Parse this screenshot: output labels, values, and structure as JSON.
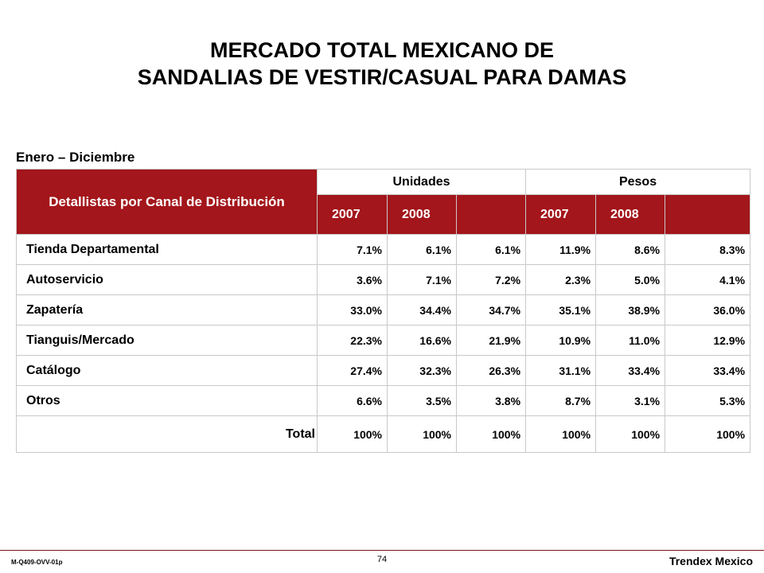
{
  "title": {
    "line1": "MERCADO TOTAL MEXICANO DE",
    "line2": "SANDALIAS DE VESTIR/CASUAL PARA DAMAS"
  },
  "period": "Enero – Diciembre",
  "table": {
    "row_header": "Detallistas por Canal de Distribución",
    "group_units": "Unidades",
    "group_pesos": "Pesos",
    "years": [
      "2007",
      "2008",
      "",
      "2007",
      "2008",
      ""
    ],
    "rows": [
      {
        "label": "Tienda Departamental",
        "values": [
          "7.1%",
          "6.1%",
          "6.1%",
          "11.9%",
          "8.6%",
          "8.3%"
        ]
      },
      {
        "label": "Autoservicio",
        "values": [
          "3.6%",
          "7.1%",
          "7.2%",
          "2.3%",
          "5.0%",
          "4.1%"
        ]
      },
      {
        "label": "Zapatería",
        "values": [
          "33.0%",
          "34.4%",
          "34.7%",
          "35.1%",
          "38.9%",
          "36.0%"
        ]
      },
      {
        "label": "Tianguis/Mercado",
        "values": [
          "22.3%",
          "16.6%",
          "21.9%",
          "10.9%",
          "11.0%",
          "12.9%"
        ]
      },
      {
        "label": "Catálogo",
        "values": [
          "27.4%",
          "32.3%",
          "26.3%",
          "31.1%",
          "33.4%",
          "33.4%"
        ]
      },
      {
        "label": "Otros",
        "values": [
          "6.6%",
          "3.5%",
          "3.8%",
          "8.7%",
          "3.1%",
          "5.3%"
        ]
      }
    ],
    "total": {
      "label": "Total",
      "values": [
        "100%",
        "100%",
        "100%",
        "100%",
        "100%",
        "100%"
      ]
    }
  },
  "footer": {
    "code": "M-Q409-OVV-01p",
    "page": "74",
    "brand": "Trendex Mexico"
  },
  "colors": {
    "header_bg": "#a3161b",
    "rule": "#7a1214"
  }
}
